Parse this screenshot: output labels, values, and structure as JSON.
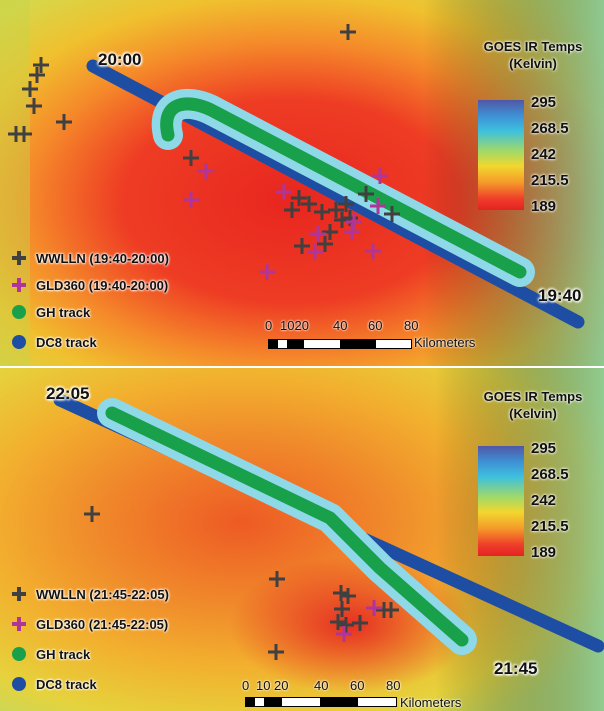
{
  "panels": [
    {
      "start_time": "20:00",
      "end_time": "19:40",
      "colorbar": {
        "title_line1": "GOES IR Temps",
        "title_line2": "(Kelvin)",
        "ticks": [
          "295",
          "268.5",
          "242",
          "215.5",
          "189"
        ]
      },
      "legend": [
        {
          "symbol": "cross",
          "color": "#404040",
          "label": "WWLLN (19:40-20:00)"
        },
        {
          "symbol": "cross",
          "color": "#b0359a",
          "label": "GLD360 (19:40-20:00)"
        },
        {
          "symbol": "dot",
          "color": "#18a04a",
          "label": "GH track"
        },
        {
          "symbol": "dot",
          "color": "#1d4ea3",
          "label": "DC8 track"
        }
      ],
      "scale": {
        "ticks": [
          "0",
          "1020",
          "40",
          "60",
          "80"
        ],
        "unit": "Kilometers"
      }
    },
    {
      "start_time": "22:05",
      "end_time": "21:45",
      "colorbar": {
        "title_line1": "GOES IR Temps",
        "title_line2": "(Kelvin)",
        "ticks": [
          "295",
          "268.5",
          "242",
          "215.5",
          "189"
        ]
      },
      "legend": [
        {
          "symbol": "cross",
          "color": "#404040",
          "label": "WWLLN (21:45-22:05)"
        },
        {
          "symbol": "cross",
          "color": "#b0359a",
          "label": "GLD360 (21:45-22:05)"
        },
        {
          "symbol": "dot",
          "color": "#18a04a",
          "label": "GH track"
        },
        {
          "symbol": "dot",
          "color": "#1d4ea3",
          "label": "DC8 track"
        }
      ],
      "scale": {
        "ticks": [
          "0",
          "10",
          "20",
          "40",
          "60",
          "80"
        ],
        "unit": "Kilometers"
      }
    }
  ]
}
